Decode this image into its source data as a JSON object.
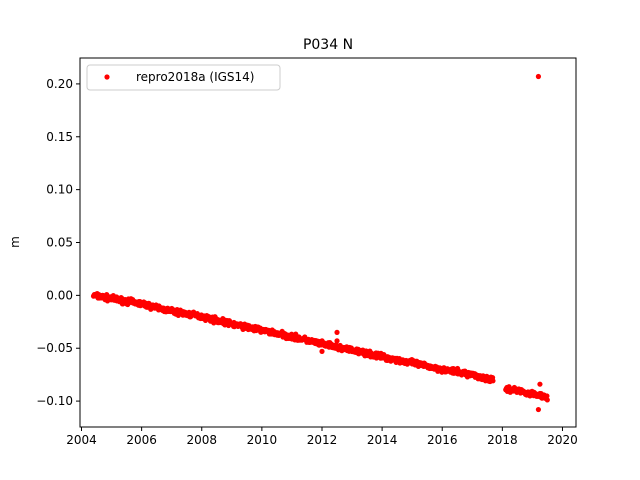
{
  "chart_data": {
    "type": "scatter",
    "title": "P034 N",
    "xlabel": "",
    "ylabel": "m",
    "xlim": [
      2003.95,
      2020.45
    ],
    "ylim": [
      -0.1245,
      0.2245
    ],
    "xticks": [
      2004,
      2006,
      2008,
      2010,
      2012,
      2014,
      2016,
      2018,
      2020
    ],
    "xtick_labels": [
      "2004",
      "2006",
      "2008",
      "2010",
      "2012",
      "2014",
      "2016",
      "2018",
      "2020"
    ],
    "yticks": [
      -0.1,
      -0.05,
      0.0,
      0.05,
      0.1,
      0.15,
      0.2
    ],
    "ytick_labels": [
      "−0.10",
      "−0.05",
      "0.00",
      "0.05",
      "0.10",
      "0.15",
      "0.20"
    ],
    "grid": false,
    "legend": {
      "position": "top-left",
      "entries": [
        "repro2018a (IGS14)"
      ]
    },
    "series": [
      {
        "name": "repro2018a (IGS14)",
        "color": "#ff0000",
        "marker": "circle",
        "trend": [
          [
            2004.4,
            0.0
          ],
          [
            2005.0,
            -0.003
          ],
          [
            2006.0,
            -0.008
          ],
          [
            2007.0,
            -0.015
          ],
          [
            2008.0,
            -0.02
          ],
          [
            2009.0,
            -0.027
          ],
          [
            2010.0,
            -0.033
          ],
          [
            2011.0,
            -0.039
          ],
          [
            2012.0,
            -0.046
          ],
          [
            2013.0,
            -0.052
          ],
          [
            2014.0,
            -0.058
          ],
          [
            2015.0,
            -0.064
          ],
          [
            2016.0,
            -0.07
          ],
          [
            2017.0,
            -0.075
          ],
          [
            2017.65,
            -0.08
          ],
          [
            2018.1,
            -0.088
          ],
          [
            2018.5,
            -0.09
          ],
          [
            2019.0,
            -0.093
          ],
          [
            2019.5,
            -0.096
          ]
        ],
        "gaps": [
          [
            2017.7,
            2018.1
          ]
        ],
        "outliers": [
          [
            2019.2,
            0.207
          ],
          [
            2012.5,
            -0.035
          ],
          [
            2012.5,
            -0.043
          ],
          [
            2012.0,
            -0.053
          ],
          [
            2019.25,
            -0.084
          ],
          [
            2019.2,
            -0.108
          ]
        ]
      }
    ]
  }
}
